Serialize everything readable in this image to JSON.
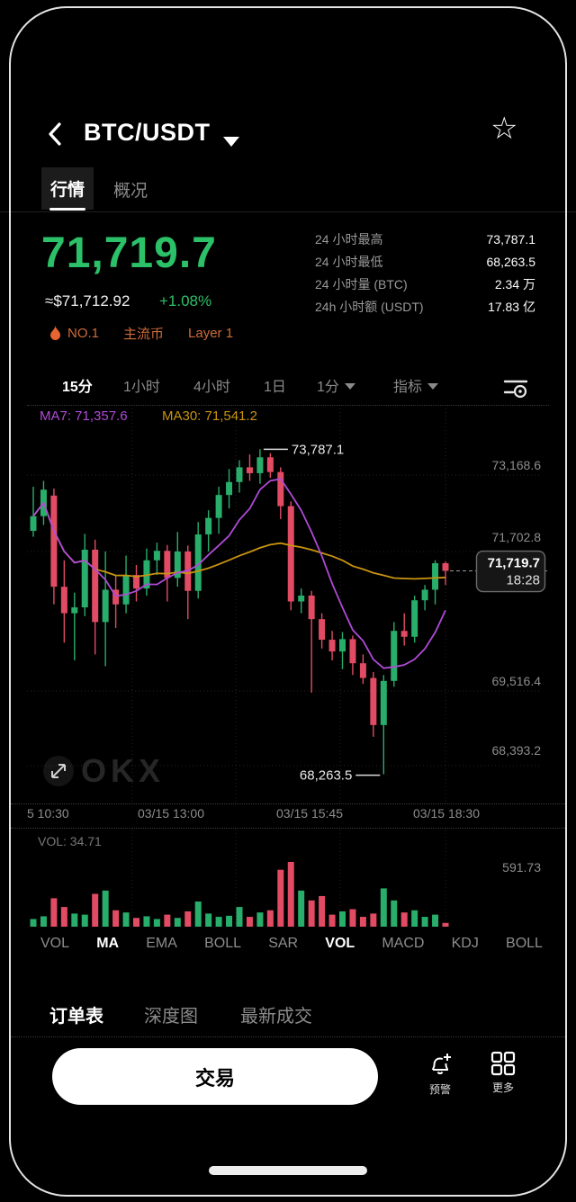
{
  "header": {
    "title": "BTC/USDT",
    "star_icon": "☆"
  },
  "tabs": [
    {
      "label": "行情",
      "active": true
    },
    {
      "label": "概况",
      "active": false
    }
  ],
  "price": {
    "last": "71,719.7",
    "fiat": "≈$71,712.92",
    "change": "+1.08%",
    "up_color": "#2CC168"
  },
  "badges": [
    {
      "label": "NO.1",
      "icon": "flame"
    },
    {
      "label": "主流币"
    },
    {
      "label": "Layer 1"
    }
  ],
  "badge_color": "#CE6B3A",
  "stats": [
    {
      "label": "24 小时最高",
      "value": "73,787.1"
    },
    {
      "label": "24 小时最低",
      "value": "68,263.5"
    },
    {
      "label": "24 小时量 (BTC)",
      "value": "2.34 万"
    },
    {
      "label": "24h 小时额 (USDT)",
      "value": "17.83 亿"
    }
  ],
  "timeframes": [
    {
      "label": "15分",
      "active": true,
      "caret": false
    },
    {
      "label": "1小时",
      "active": false,
      "caret": false
    },
    {
      "label": "4小时",
      "active": false,
      "caret": false
    },
    {
      "label": "1日",
      "active": false,
      "caret": false
    },
    {
      "label": "1分",
      "active": false,
      "caret": true
    },
    {
      "label": "指标",
      "active": false,
      "caret": true
    }
  ],
  "chart_data": {
    "type": "candlestick",
    "interval": "15m",
    "ma_labels": [
      "MA7: 71,357.6",
      "MA30: 71,541.2"
    ],
    "colors": {
      "up": "#28AD6B",
      "down": "#E14B63",
      "ma7": "#AF4BD6",
      "ma30": "#C9940F"
    },
    "y_axis": [
      "73,168.6",
      "71,702.8",
      "69,516.4",
      "68,393.2"
    ],
    "x_axis": [
      "5 10:30",
      "03/15 13:00",
      "03/15 15:45",
      "03/15 18:30"
    ],
    "high_annotation": "73,787.1",
    "low_annotation": "68,263.5",
    "current": {
      "price": "71,719.7",
      "time": "18:28",
      "value": 71719.7
    },
    "watermark": "OKX",
    "vol_label": "VOL: 34.71",
    "vol_max_label": "591.73",
    "vol_max_value": 591.73,
    "ohlc": [
      [
        72400,
        73150,
        72300,
        72650
      ],
      [
        72650,
        73250,
        72500,
        73100
      ],
      [
        73000,
        73120,
        71150,
        71450
      ],
      [
        71450,
        71900,
        70500,
        71000
      ],
      [
        71000,
        71350,
        70200,
        71100
      ],
      [
        71100,
        72350,
        70950,
        72080
      ],
      [
        72080,
        72250,
        70300,
        70850
      ],
      [
        70850,
        72050,
        70100,
        71400
      ],
      [
        71400,
        71650,
        70750,
        71150
      ],
      [
        71150,
        71980,
        71000,
        71650
      ],
      [
        71650,
        71820,
        71200,
        71420
      ],
      [
        71420,
        72100,
        71300,
        71900
      ],
      [
        71900,
        72200,
        71650,
        72060
      ],
      [
        72060,
        72160,
        71200,
        71600
      ],
      [
        71600,
        72380,
        71450,
        72050
      ],
      [
        72050,
        72150,
        70900,
        71380
      ],
      [
        71380,
        72550,
        71250,
        72340
      ],
      [
        72340,
        72750,
        72050,
        72620
      ],
      [
        72620,
        73150,
        72350,
        73010
      ],
      [
        73010,
        73450,
        72780,
        73230
      ],
      [
        73230,
        73600,
        73050,
        73480
      ],
      [
        73480,
        73700,
        73250,
        73380
      ],
      [
        73380,
        73787.1,
        73200,
        73650
      ],
      [
        73650,
        73720,
        73300,
        73400
      ],
      [
        73400,
        73480,
        72600,
        72820
      ],
      [
        72820,
        72900,
        71050,
        71200
      ],
      [
        71200,
        71420,
        71000,
        71300
      ],
      [
        71300,
        71380,
        69650,
        70900
      ],
      [
        70900,
        71000,
        70400,
        70550
      ],
      [
        70550,
        70700,
        70200,
        70350
      ],
      [
        70350,
        70680,
        70050,
        70560
      ],
      [
        70560,
        70620,
        69950,
        70150
      ],
      [
        70150,
        70300,
        69800,
        69900
      ],
      [
        69900,
        70000,
        68900,
        69100
      ],
      [
        69100,
        69950,
        68263.5,
        69850
      ],
      [
        69850,
        70850,
        69750,
        70700
      ],
      [
        70700,
        71000,
        70450,
        70600
      ],
      [
        70600,
        71300,
        70500,
        71220
      ],
      [
        71220,
        71480,
        71050,
        71400
      ],
      [
        71400,
        71900,
        71150,
        71850
      ],
      [
        71850,
        71880,
        71480,
        71719.7
      ]
    ],
    "volume": [
      70,
      95,
      260,
      180,
      120,
      110,
      300,
      330,
      150,
      130,
      80,
      95,
      70,
      110,
      80,
      140,
      230,
      120,
      90,
      100,
      180,
      90,
      130,
      150,
      520,
      591.73,
      330,
      240,
      280,
      110,
      140,
      160,
      90,
      120,
      350,
      240,
      130,
      150,
      90,
      110,
      34.71
    ]
  },
  "indicators": [
    {
      "label": "VOL",
      "active": false
    },
    {
      "label": "MA",
      "active": true
    },
    {
      "label": "EMA",
      "active": false
    },
    {
      "label": "BOLL",
      "active": false
    },
    {
      "label": "SAR",
      "active": false
    },
    {
      "label": "VOL",
      "active": true
    },
    {
      "label": "MACD",
      "active": false
    },
    {
      "label": "KDJ",
      "active": false
    },
    {
      "label": "BOLL",
      "active": false
    }
  ],
  "bottom_tabs": [
    {
      "label": "订单表",
      "active": true
    },
    {
      "label": "深度图",
      "active": false
    },
    {
      "label": "最新成交",
      "active": false
    }
  ],
  "trade": {
    "button": "交易",
    "alert": "预警",
    "more": "更多"
  }
}
